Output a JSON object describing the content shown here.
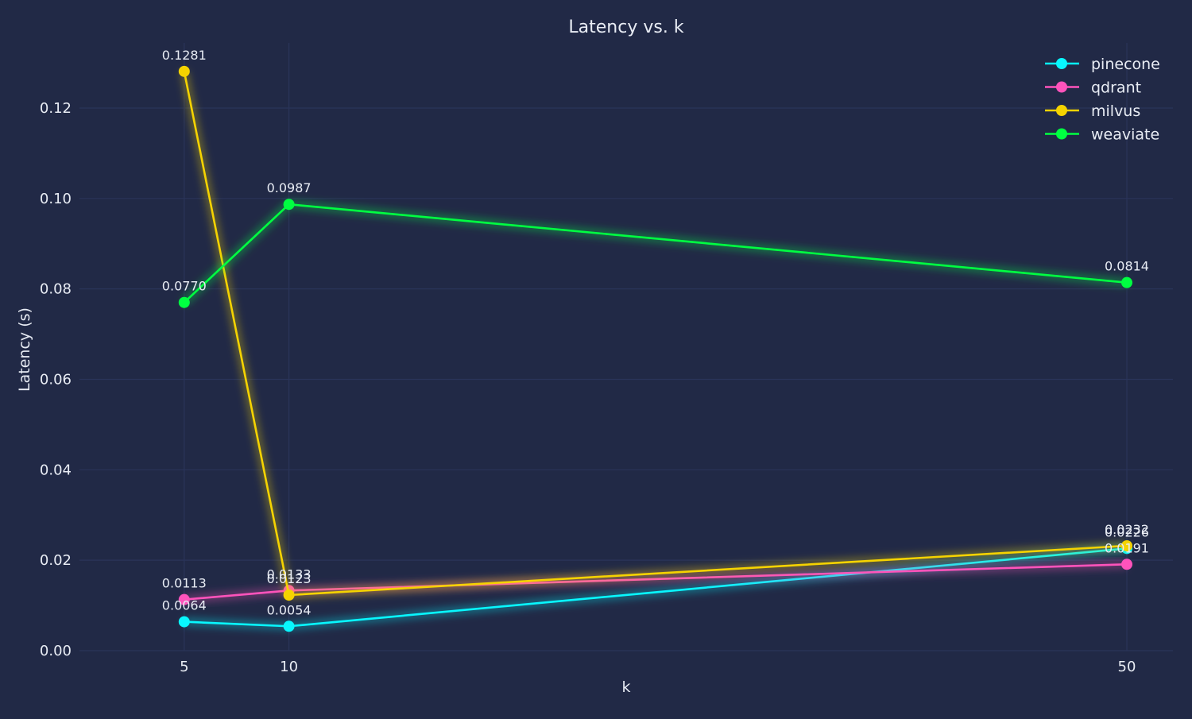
{
  "chart_data": {
    "type": "line",
    "title": "Latency vs. k",
    "xlabel": "k",
    "ylabel": "Latency (s)",
    "x": [
      5,
      10,
      50
    ],
    "x_ticks": [
      "5",
      "10",
      "50"
    ],
    "xlim": [
      0.0,
      52.2
    ],
    "ylim": [
      -0.0,
      0.1344
    ],
    "y_ticks": [
      "0.00",
      "0.02",
      "0.04",
      "0.06",
      "0.08",
      "0.10",
      "0.12"
    ],
    "grid": true,
    "legend_position": "top-right",
    "series": [
      {
        "name": "pinecone",
        "color": "#08F7FE",
        "values": [
          0.0064,
          0.0054,
          0.0226
        ],
        "labels": [
          "0.0064",
          "0.0054",
          "0.0226"
        ]
      },
      {
        "name": "qdrant",
        "color": "#FE53BB",
        "values": [
          0.0113,
          0.0133,
          0.0191
        ],
        "labels": [
          "0.0113",
          "0.0133",
          "0.0191"
        ]
      },
      {
        "name": "milvus",
        "color": "#F5D300",
        "values": [
          0.1281,
          0.0123,
          0.0232
        ],
        "labels": [
          "0.1281",
          "0.0123",
          "0.0232"
        ]
      },
      {
        "name": "weaviate",
        "color": "#00ff41",
        "values": [
          0.077,
          0.0987,
          0.0814
        ],
        "labels": [
          "0.0770",
          "0.0987",
          "0.0814"
        ]
      }
    ]
  }
}
